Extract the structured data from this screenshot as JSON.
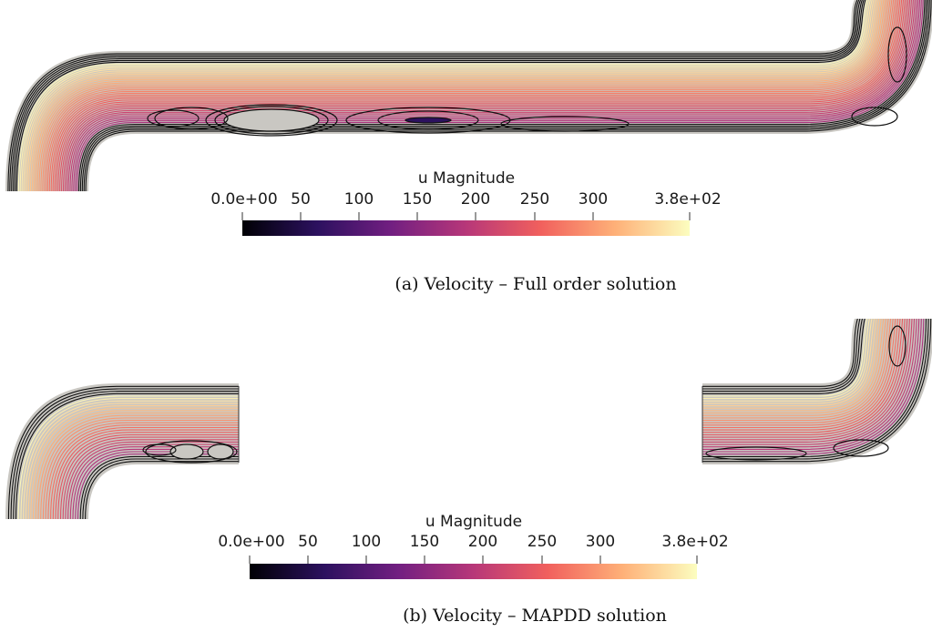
{
  "panels": [
    {
      "id": "a",
      "caption": "(a) Velocity – Full order solution",
      "colorbar": {
        "title": "u Magnitude",
        "ticks": [
          "0.0e+00",
          "50",
          "100",
          "150",
          "200",
          "250",
          "300",
          "3.8e+02"
        ]
      }
    },
    {
      "id": "b",
      "caption": "(b) Velocity – MAPDD solution",
      "colorbar": {
        "title": "u Magnitude",
        "ticks": [
          "0.0e+00",
          "50",
          "100",
          "150",
          "200",
          "250",
          "300",
          "3.8e+02"
        ]
      }
    }
  ],
  "colormap": {
    "name": "magma",
    "stops": [
      "#000004",
      "#2c115f",
      "#721f81",
      "#b73779",
      "#f1605d",
      "#feb078",
      "#fcfdbf"
    ]
  },
  "colors": {
    "channel": "#c9c7c2",
    "vortex": "#111111"
  }
}
